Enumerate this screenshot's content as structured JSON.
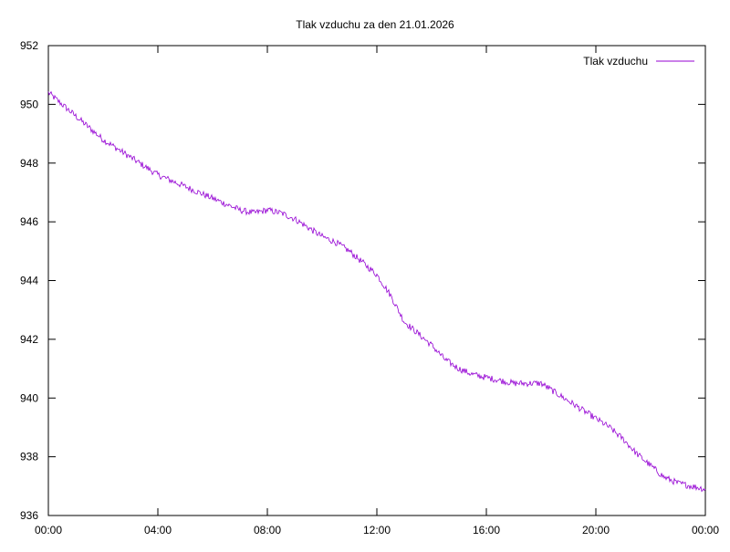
{
  "chart_data": {
    "type": "line",
    "title": "Tlak vzduchu za den 21.01.2026",
    "xlabel": "",
    "ylabel": "",
    "xlim": [
      "00:00",
      "24:00"
    ],
    "ylim": [
      936,
      952
    ],
    "x_ticks": [
      "00:00",
      "04:00",
      "08:00",
      "12:00",
      "16:00",
      "20:00",
      "00:00"
    ],
    "y_ticks": [
      "936",
      "938",
      "940",
      "942",
      "944",
      "946",
      "948",
      "950",
      "952"
    ],
    "legend_position": "top-right",
    "grid": false,
    "series": [
      {
        "name": "Tlak vzduchu",
        "color": "#9400d3",
        "x": [
          "00:00",
          "00:30",
          "01:00",
          "01:30",
          "02:00",
          "02:30",
          "03:00",
          "03:30",
          "04:00",
          "04:30",
          "05:00",
          "05:30",
          "06:00",
          "06:30",
          "07:00",
          "07:30",
          "08:00",
          "08:30",
          "09:00",
          "09:30",
          "10:00",
          "10:30",
          "11:00",
          "11:30",
          "12:00",
          "12:30",
          "13:00",
          "13:30",
          "14:00",
          "14:30",
          "15:00",
          "15:30",
          "16:00",
          "16:30",
          "17:00",
          "17:30",
          "18:00",
          "18:30",
          "19:00",
          "19:30",
          "20:00",
          "20:30",
          "21:00",
          "21:30",
          "22:00",
          "22:30",
          "23:00",
          "23:30",
          "24:00"
        ],
        "values": [
          950.4,
          950.0,
          949.6,
          949.2,
          948.8,
          948.5,
          948.2,
          947.9,
          947.6,
          947.4,
          947.2,
          947.0,
          946.8,
          946.6,
          946.4,
          946.3,
          946.4,
          946.3,
          946.1,
          945.8,
          945.5,
          945.3,
          945.0,
          944.6,
          944.2,
          943.5,
          942.6,
          942.2,
          941.8,
          941.3,
          941.0,
          940.8,
          940.7,
          940.6,
          940.5,
          940.5,
          940.5,
          940.2,
          939.9,
          939.6,
          939.3,
          939.0,
          938.6,
          938.1,
          937.7,
          937.3,
          937.1,
          937.0,
          936.9
        ]
      }
    ]
  }
}
